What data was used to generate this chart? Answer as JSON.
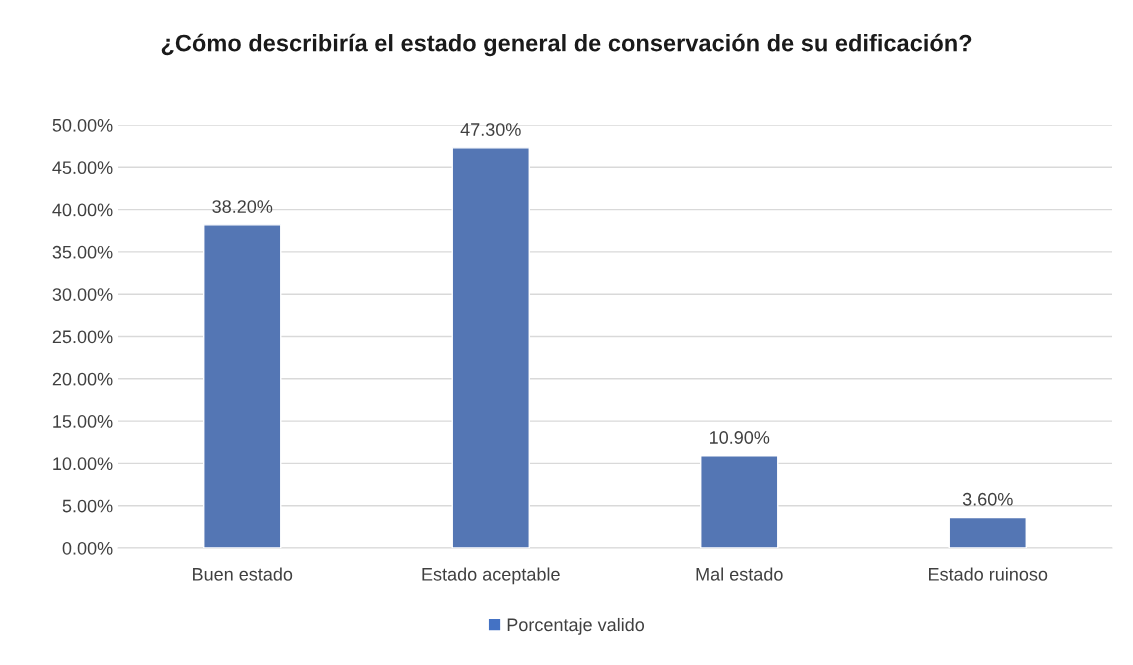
{
  "chart_data": {
    "type": "bar",
    "title": "¿Cómo describiría el estado general de conservación de su edificación?",
    "categories": [
      "Buen estado",
      "Estado aceptable",
      "Mal estado",
      "Estado ruinoso"
    ],
    "series": [
      {
        "name": "Porcentaje valido",
        "color": "#4472c4",
        "values": [
          38.2,
          47.3,
          10.9,
          3.6
        ],
        "value_labels": [
          "38.20%",
          "47.30%",
          "10.90%",
          "3.60%"
        ]
      }
    ],
    "ylim": [
      0,
      50
    ],
    "yticks": [
      {
        "value": 0,
        "label": "0.00%"
      },
      {
        "value": 5,
        "label": "5.00%"
      },
      {
        "value": 10,
        "label": "10.00%"
      },
      {
        "value": 15,
        "label": "15.00%"
      },
      {
        "value": 20,
        "label": "20.00%"
      },
      {
        "value": 25,
        "label": "25.00%"
      },
      {
        "value": 30,
        "label": "30.00%"
      },
      {
        "value": 35,
        "label": "35.00%"
      },
      {
        "value": 40,
        "label": "40.00%"
      },
      {
        "value": 45,
        "label": "45.00%"
      },
      {
        "value": 50,
        "label": "50.00%"
      }
    ],
    "grid": "y",
    "legend": "bottom"
  }
}
